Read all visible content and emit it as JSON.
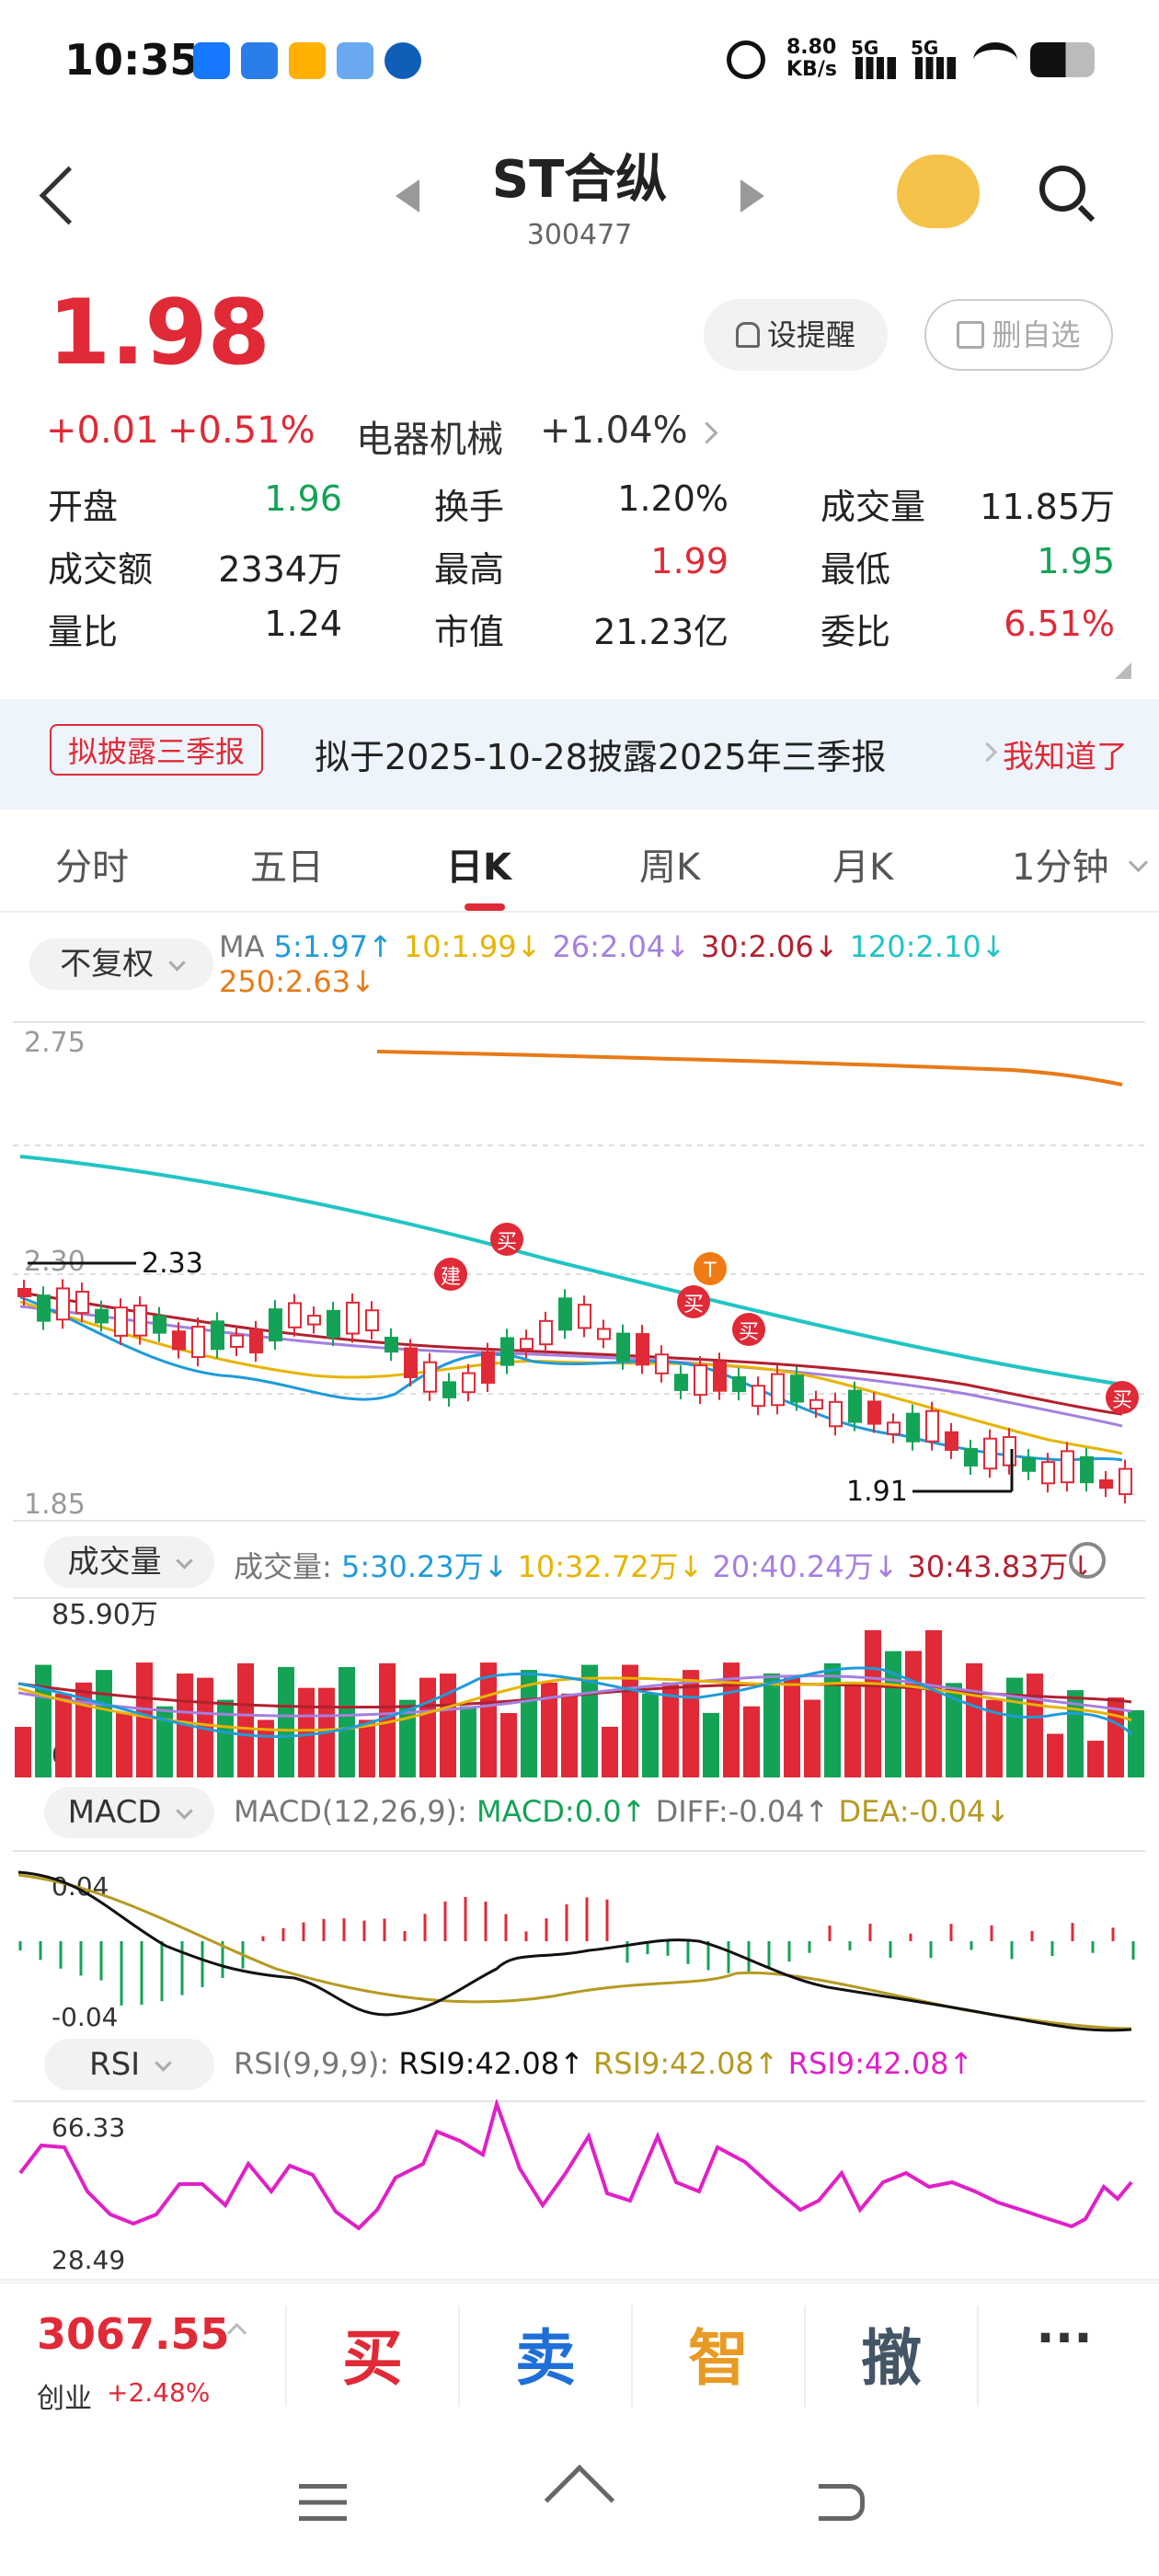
{
  "status_bar": {
    "time": "10:35",
    "speed_top": "8.80",
    "speed_bottom": "KB/s",
    "sig1": "5G",
    "sig2": "5G",
    "icons": [
      "alipay-icon",
      "app-icon",
      "play-icon",
      "file-icon",
      "browser-icon",
      "alarm-icon",
      "wifi-icon",
      "battery-icon"
    ]
  },
  "header": {
    "name": "ST合纵",
    "code": "300477"
  },
  "quote": {
    "price": "1.98",
    "change": "+0.01",
    "change_pct": "+0.51%",
    "sector": "电器机械",
    "sector_pct": "+1.04%",
    "alert_label": "设提醒",
    "remove_label": "删自选",
    "stats": [
      {
        "label": "开盘",
        "value": "1.96",
        "color": "green"
      },
      {
        "label": "换手",
        "value": "1.20%",
        "color": "black"
      },
      {
        "label": "成交量",
        "value": "11.85万",
        "color": "black"
      },
      {
        "label": "成交额",
        "value": "2334万",
        "color": "black"
      },
      {
        "label": "最高",
        "value": "1.99",
        "color": "red"
      },
      {
        "label": "最低",
        "value": "1.95",
        "color": "green"
      },
      {
        "label": "量比",
        "value": "1.24",
        "color": "black"
      },
      {
        "label": "市值",
        "value": "21.23亿",
        "color": "black"
      },
      {
        "label": "委比",
        "value": "6.51%",
        "color": "red"
      }
    ]
  },
  "notice": {
    "tag": "拟披露三季报",
    "text": "拟于2025-10-28披露2025年三季报",
    "action": "我知道了"
  },
  "tabs": [
    "分时",
    "五日",
    "日K",
    "周K",
    "月K",
    "1分钟"
  ],
  "active_tab": "日K",
  "kline": {
    "adjust": "不复权",
    "ma_label": "MA",
    "ma": [
      {
        "text": "5:1.97",
        "color": "#1f9bd9"
      },
      {
        "text": "10:1.99",
        "color": "#e6b400"
      },
      {
        "text": "26:2.04",
        "color": "#a57fe0"
      },
      {
        "text": "30:2.06",
        "color": "#b3202f"
      },
      {
        "text": "120:2.10",
        "color": "#22c4c4"
      },
      {
        "text": "250:2.63",
        "color": "#e87a18"
      }
    ],
    "y_top": "2.75",
    "y_mid": "2.30",
    "y_bottom": "1.85",
    "high_mark": "2.33",
    "low_mark": "1.91",
    "signals": [
      "建",
      "买",
      "T",
      "买",
      "买",
      "买"
    ]
  },
  "volume": {
    "label": "成交量",
    "title": "成交量:",
    "ma": [
      {
        "text": "5:30.23万",
        "color": "#1f9bd9"
      },
      {
        "text": "10:32.72万",
        "color": "#e6b400"
      },
      {
        "text": "20:40.24万",
        "color": "#a57fe0"
      },
      {
        "text": "30:43.83万",
        "color": "#b3202f"
      }
    ],
    "y_top": "85.90万",
    "y_bottom": "0"
  },
  "macd": {
    "label": "MACD",
    "params": "MACD(12,26,9):",
    "macd": "MACD:0.0",
    "diff": "DIFF:-0.04",
    "dea": "DEA:-0.04",
    "y_top": "0.04",
    "y_bottom": "-0.04"
  },
  "rsi": {
    "label": "RSI",
    "params": "RSI(9,9,9):",
    "v1": "RSI9:42.08",
    "v2": "RSI9:42.08",
    "v3": "RSI9:42.08",
    "y_top": "66.33",
    "y_bottom": "28.49"
  },
  "bottom": {
    "index_value": "3067.55",
    "index_name": "创业",
    "index_pct": "+2.48%",
    "buy": "买",
    "sell": "卖",
    "smart": "智",
    "cancel": "撤",
    "more": "···"
  }
}
